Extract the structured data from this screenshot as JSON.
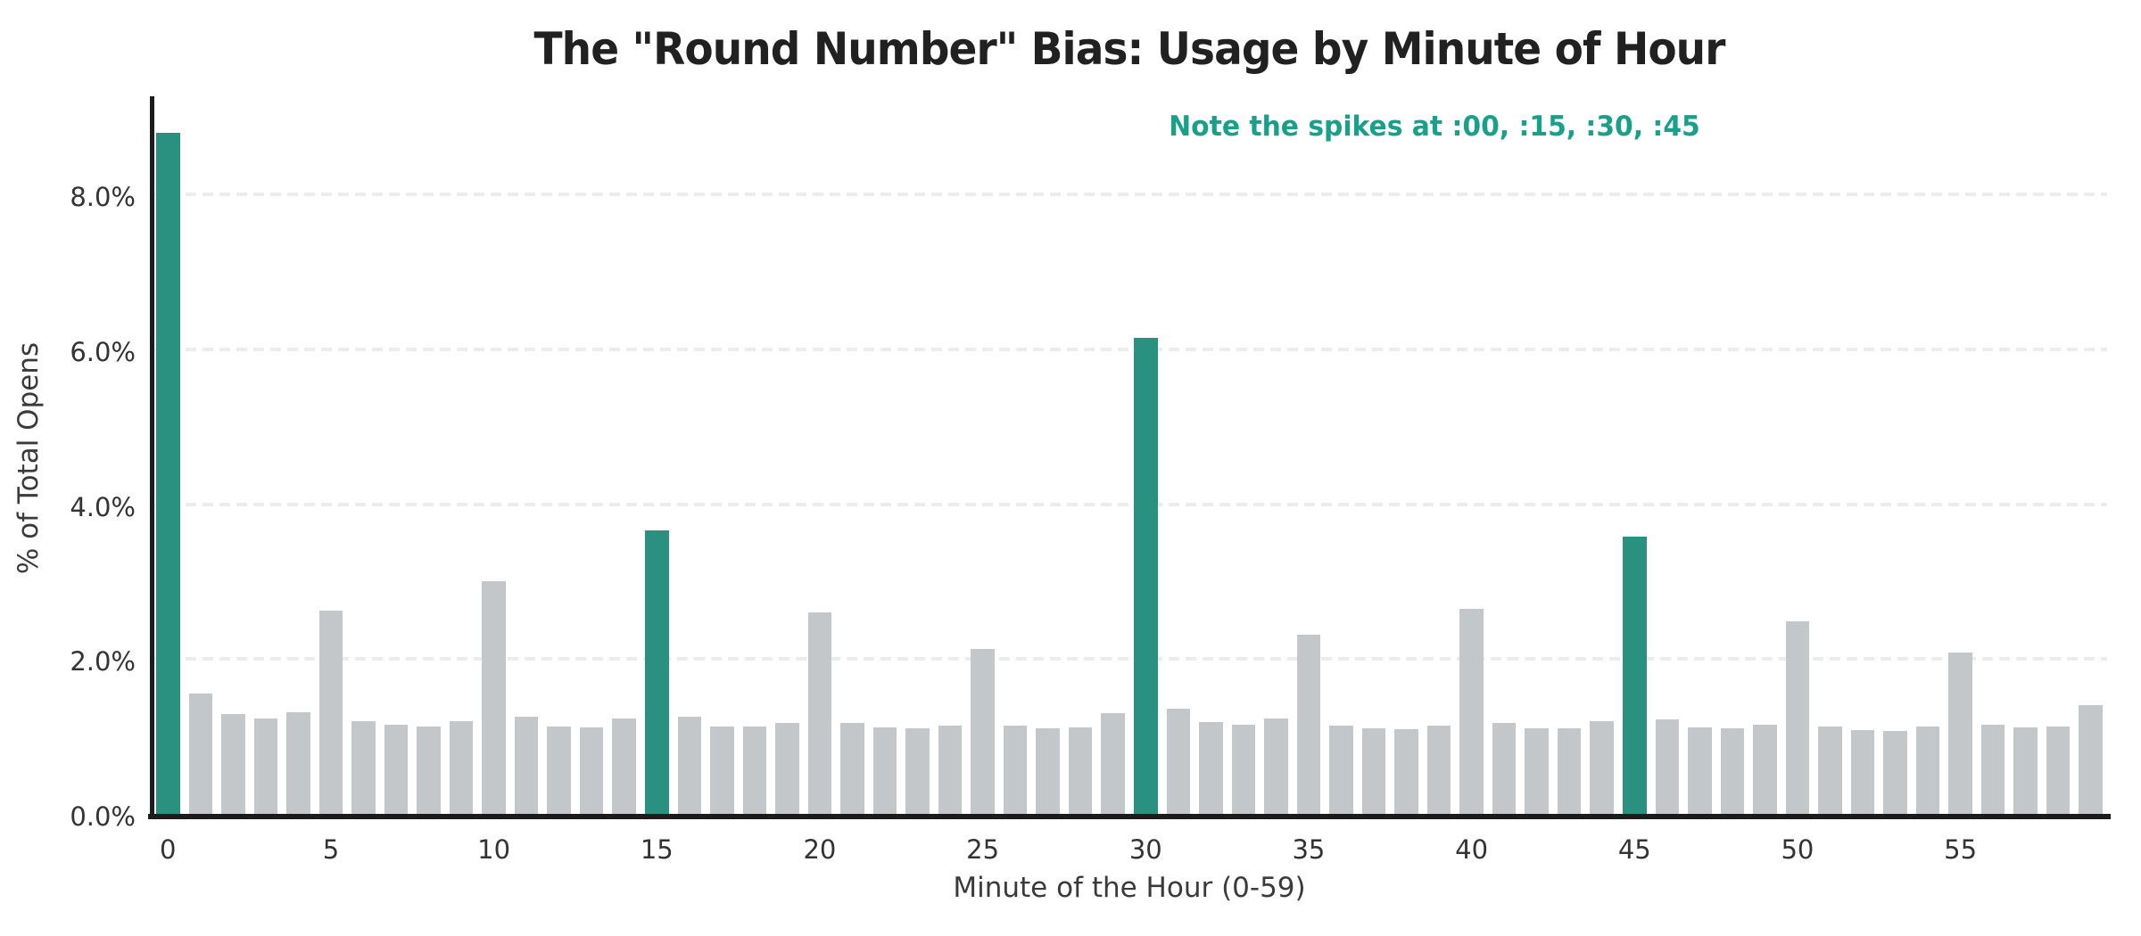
{
  "chart_data": {
    "type": "bar",
    "title": "The \"Round Number\" Bias: Usage by Minute of Hour",
    "xlabel": "Minute of the Hour (0-59)",
    "ylabel": "% of Total Opens",
    "annotation": "Note the spikes at :00, :15, :30, :45",
    "x": [
      0,
      1,
      2,
      3,
      4,
      5,
      6,
      7,
      8,
      9,
      10,
      11,
      12,
      13,
      14,
      15,
      16,
      17,
      18,
      19,
      20,
      21,
      22,
      23,
      24,
      25,
      26,
      27,
      28,
      29,
      30,
      31,
      32,
      33,
      34,
      35,
      36,
      37,
      38,
      39,
      40,
      41,
      42,
      43,
      44,
      45,
      46,
      47,
      48,
      49,
      50,
      51,
      52,
      53,
      54,
      55,
      56,
      57,
      58,
      59
    ],
    "values": [
      8.8,
      1.56,
      1.29,
      1.23,
      1.31,
      2.63,
      1.2,
      1.15,
      1.13,
      1.2,
      3.0,
      1.25,
      1.13,
      1.12,
      1.23,
      3.66,
      1.25,
      1.13,
      1.13,
      1.18,
      2.6,
      1.17,
      1.12,
      1.11,
      1.14,
      2.13,
      1.14,
      1.1,
      1.12,
      1.3,
      6.15,
      1.36,
      1.19,
      1.15,
      1.23,
      2.31,
      1.14,
      1.1,
      1.09,
      1.14,
      2.65,
      1.17,
      1.1,
      1.1,
      1.2,
      3.58,
      1.22,
      1.12,
      1.1,
      1.15,
      2.49,
      1.13,
      1.08,
      1.07,
      1.13,
      2.08,
      1.15,
      1.12,
      1.13,
      1.4
    ],
    "highlighted_x": [
      0,
      15,
      30,
      45
    ],
    "ylim": [
      0,
      9.27
    ],
    "grid": "horizontal-dashed",
    "gridline_values": [
      2,
      4,
      6,
      8
    ],
    "y_tick_labels": [
      "0.0%",
      "2.0%",
      "4.0%",
      "6.0%",
      "8.0%"
    ],
    "y_tick_values": [
      0,
      2,
      4,
      6,
      8
    ],
    "x_tick_values": [
      0,
      5,
      10,
      15,
      20,
      25,
      30,
      35,
      40,
      45,
      50,
      55
    ],
    "legend": "none",
    "colors": {
      "bar_highlight": "#2a9180",
      "bar_default": "#c3c7c9",
      "annotation_text": "#18a188",
      "title_text": "#212121",
      "tick_text": "#333333",
      "grid": "#ececec",
      "spine": "#1c1c1c",
      "background": "#ffffff"
    }
  }
}
